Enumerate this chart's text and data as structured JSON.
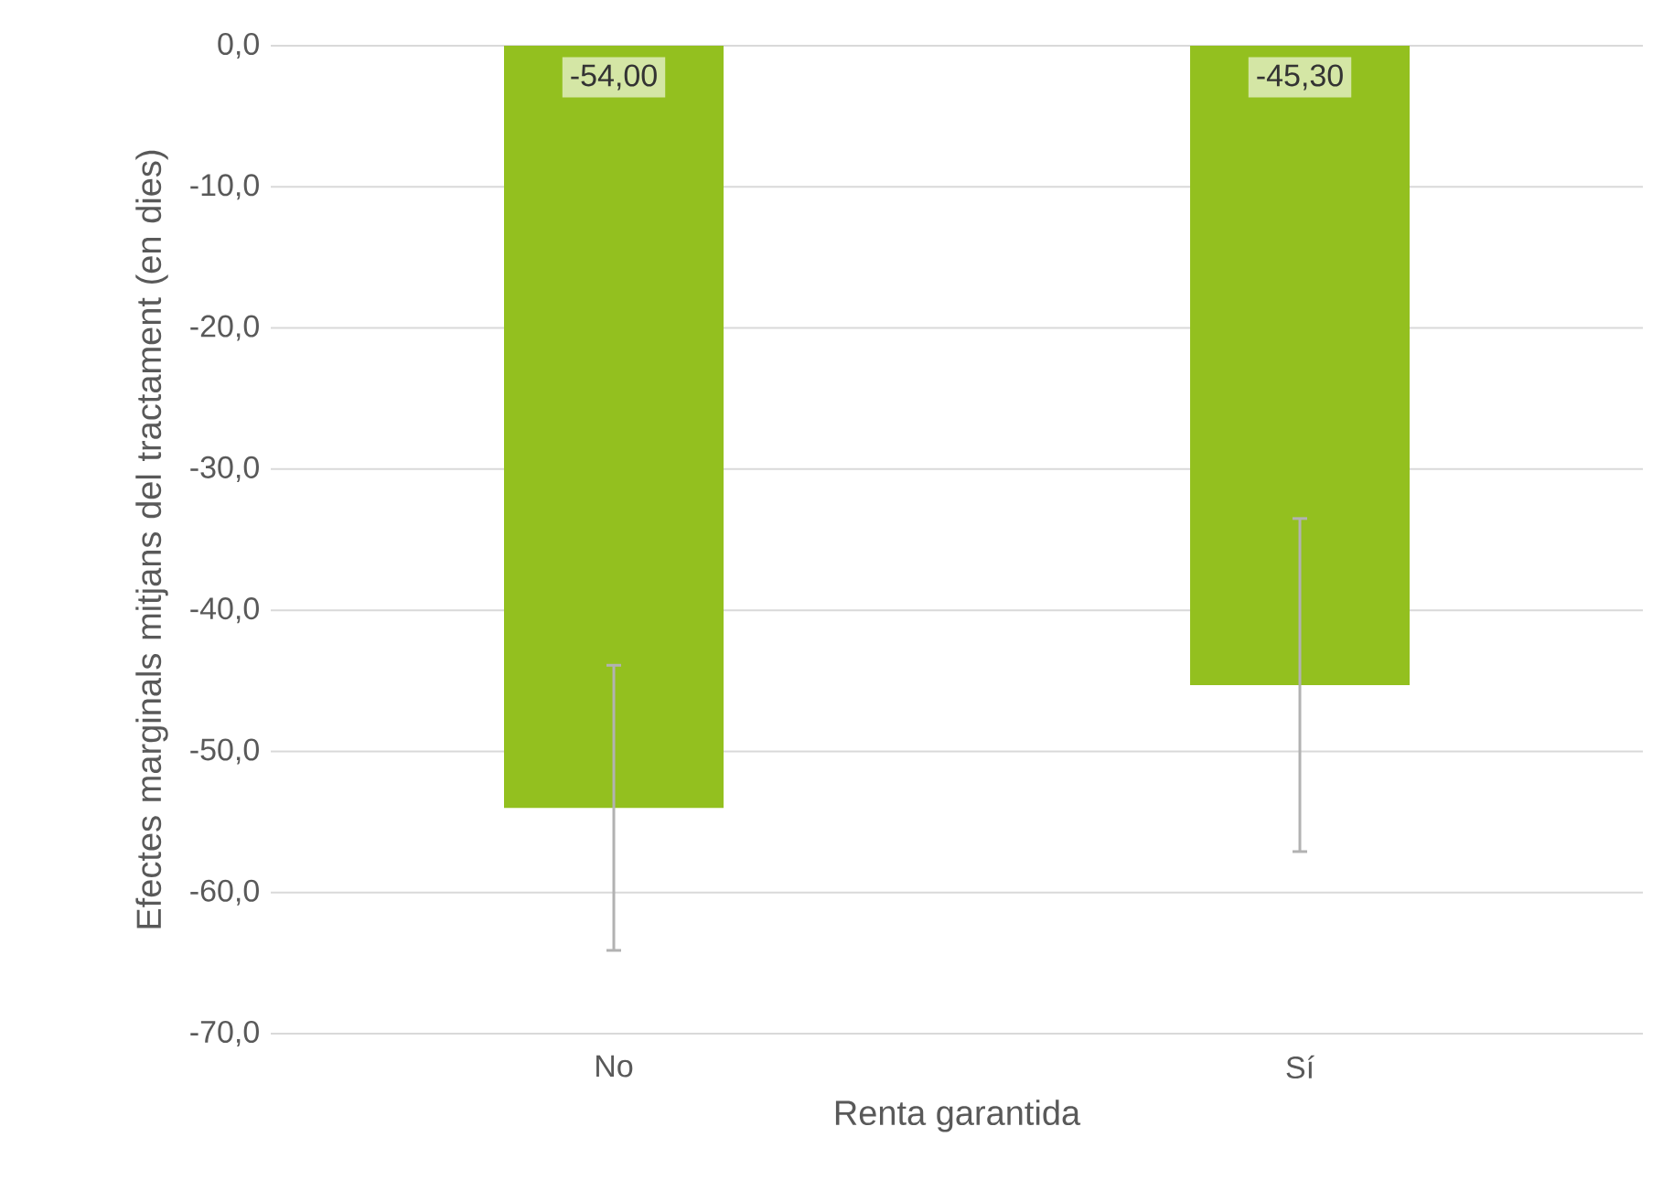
{
  "chart_data": {
    "type": "bar",
    "xlabel": "Renta garantida",
    "ylabel": "Efectes marginals mitjans del tractament (en dies)",
    "categories": [
      "No",
      "Sí"
    ],
    "values": [
      -54.0,
      -45.3
    ],
    "value_labels": [
      "-54,00",
      "-45,30"
    ],
    "errors": [
      10.1,
      11.8
    ],
    "color": "#93c01f",
    "ylim": [
      -70,
      0
    ],
    "yticks": [
      {
        "value": -70,
        "label": "-70,0"
      },
      {
        "value": -60,
        "label": "-60,0"
      },
      {
        "value": -50,
        "label": "-50,0"
      },
      {
        "value": -40,
        "label": "-40,0"
      },
      {
        "value": -30,
        "label": "-30,0"
      },
      {
        "value": -20,
        "label": "-20,0"
      },
      {
        "value": -10,
        "label": "-10,0"
      },
      {
        "value": 0,
        "label": "0,0"
      }
    ],
    "grid": "y"
  }
}
